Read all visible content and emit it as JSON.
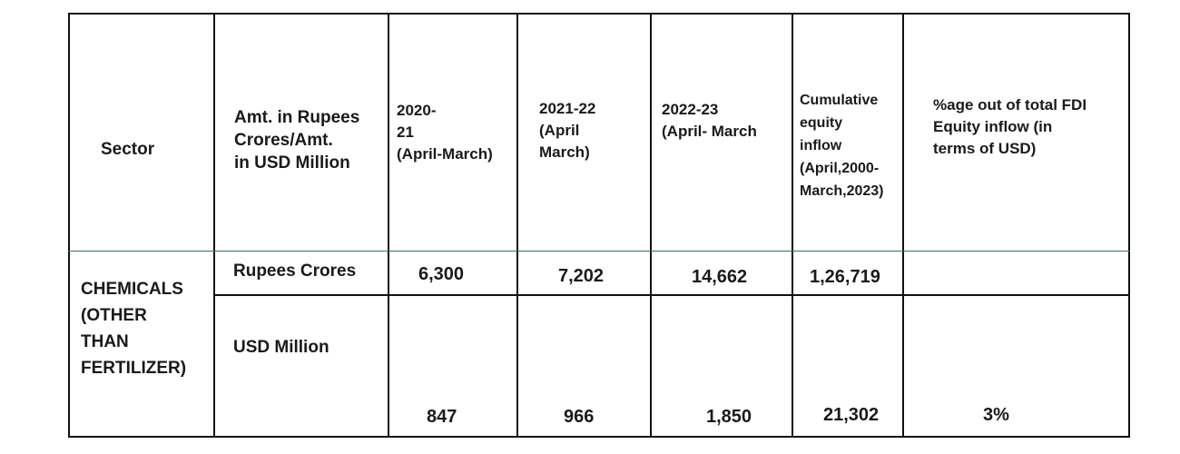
{
  "table": {
    "headers": {
      "sector": "Sector",
      "amount": "Amt. in Rupees\nCrores/Amt.\nin USD Million",
      "y2020": "2020-\n21\n(April-March)",
      "y2021": "2021-22\n(April\nMarch)",
      "y2022": "2022-23\n(April- March",
      "cumulative": "Cumulative\nequity\ninflow\n(April,2000-\nMarch,2023)",
      "percentage": "%age out of total FDI\nEquity inflow (in\nterms of USD)"
    },
    "sector_name": "CHEMICALS\n(OTHER\nTHAN\nFERTILIZER)",
    "rows": {
      "rupees": {
        "label": "Rupees Crores",
        "y2020": "6,300",
        "y2021": "7,202",
        "y2022": "14,662",
        "cumulative": "1,26,719",
        "percentage": ""
      },
      "usd": {
        "label": "USD Million",
        "y2020": "847",
        "y2021": "966",
        "y2022": "1,850",
        "cumulative": "21,302",
        "percentage": "3%"
      }
    }
  }
}
